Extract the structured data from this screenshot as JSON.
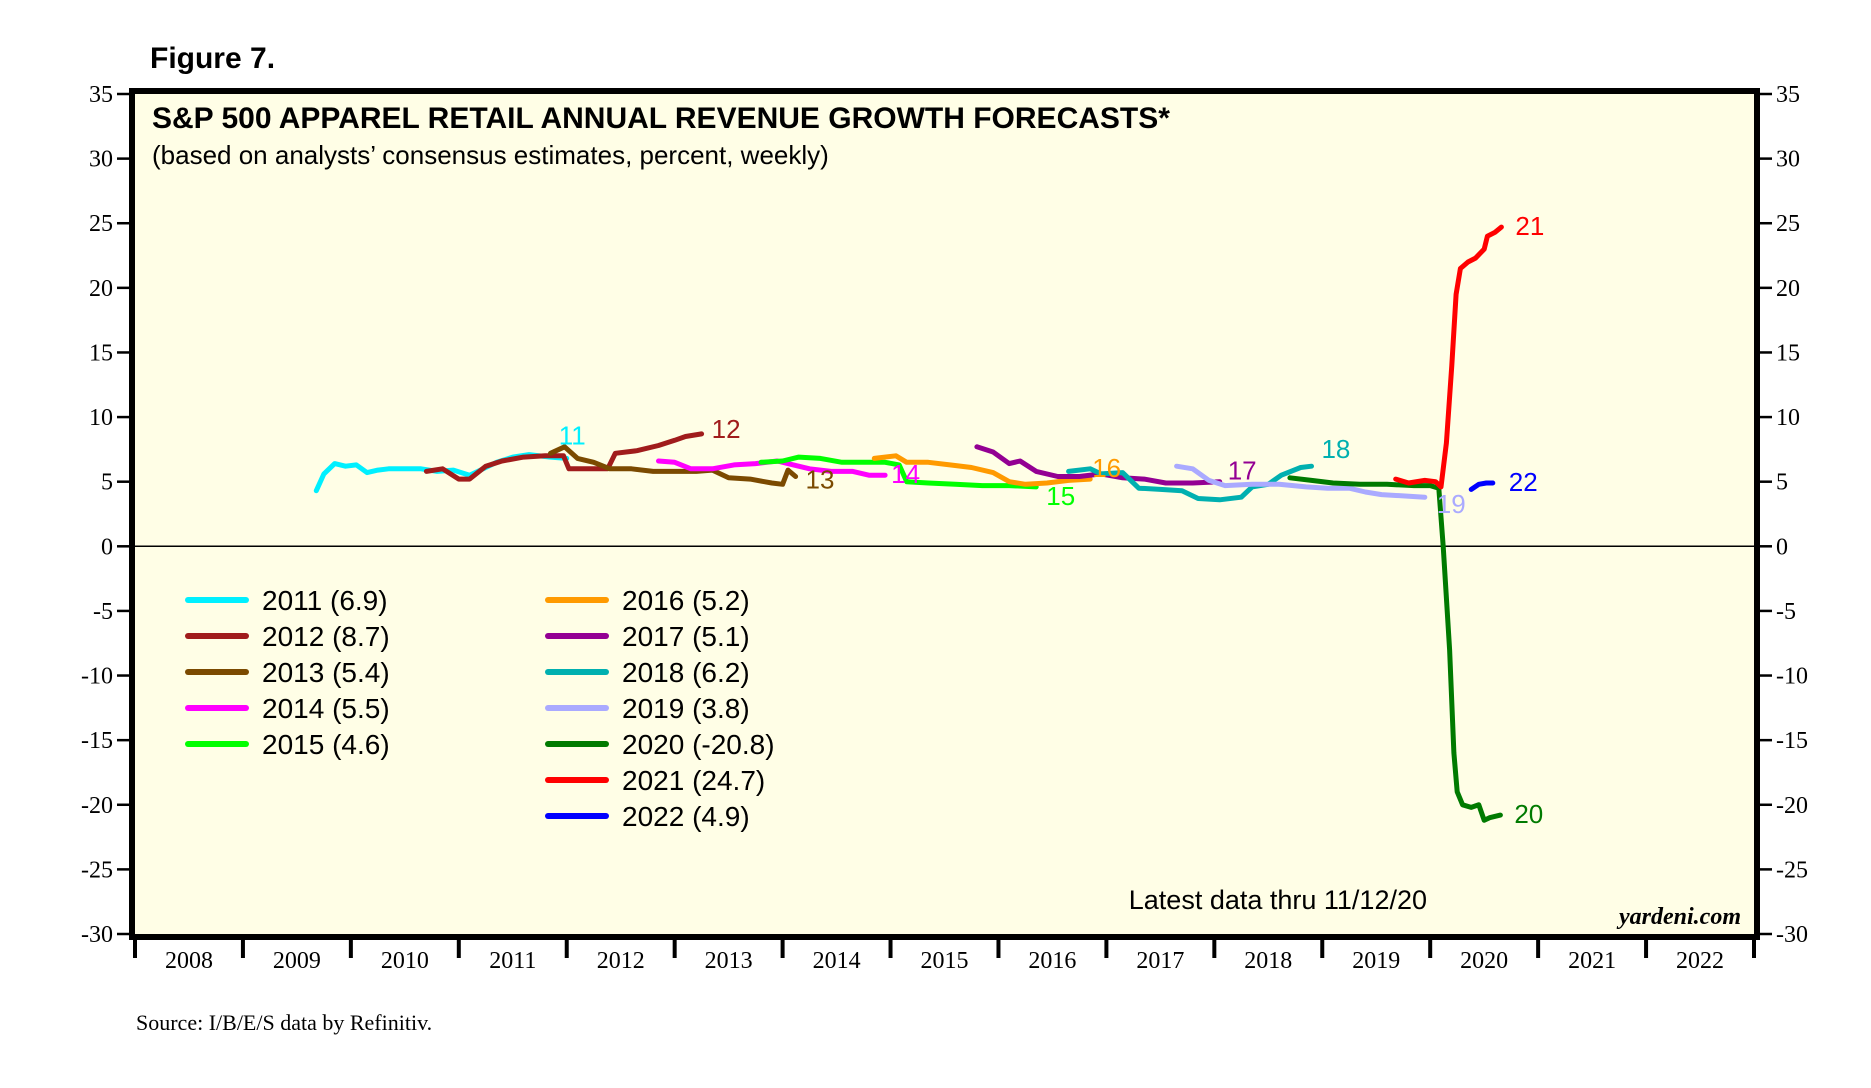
{
  "figure_label": "Figure 7.",
  "source": "Source: I/B/E/S data by Refinitiv.",
  "chart_data": {
    "type": "line",
    "title": "S&P 500 APPAREL RETAIL ANNUAL REVENUE GROWTH FORECASTS*",
    "subtitle": "(based on analysts’ consensus estimates, percent, weekly)",
    "xlabel": "",
    "ylabel": "",
    "xlim": [
      2008,
      2023
    ],
    "ylim": [
      -30,
      35
    ],
    "x_tick_labels": [
      "2008",
      "2009",
      "2010",
      "2011",
      "2012",
      "2013",
      "2014",
      "2015",
      "2016",
      "2017",
      "2018",
      "2019",
      "2020",
      "2021",
      "2022"
    ],
    "y_ticks": [
      35,
      30,
      25,
      20,
      15,
      10,
      5,
      0,
      -5,
      -10,
      -15,
      -20,
      -25,
      -30
    ],
    "y_tick_labels": [
      "35",
      "30",
      "25",
      "20",
      "15",
      "10",
      "5",
      "0",
      "-5",
      "-10",
      "-15",
      "-20",
      "-25",
      "-30"
    ],
    "zero_line": true,
    "grid": false,
    "legend_position": "lower-left",
    "background": "#fffee6",
    "annotation": "Latest data thru  11/12/20",
    "brand": "yardeni.com",
    "series": [
      {
        "name": "2011",
        "legend": "2011 (6.9)",
        "final": 6.9,
        "end_label": "11",
        "color": "#00f0ff",
        "points": [
          [
            2009.68,
            4.3
          ],
          [
            2009.75,
            5.6
          ],
          [
            2009.85,
            6.4
          ],
          [
            2009.95,
            6.2
          ],
          [
            2010.05,
            6.3
          ],
          [
            2010.15,
            5.7
          ],
          [
            2010.25,
            5.9
          ],
          [
            2010.35,
            6.0
          ],
          [
            2010.5,
            6.0
          ],
          [
            2010.65,
            6.0
          ],
          [
            2010.8,
            5.8
          ],
          [
            2010.95,
            5.9
          ],
          [
            2011.1,
            5.5
          ],
          [
            2011.2,
            5.9
          ],
          [
            2011.35,
            6.5
          ],
          [
            2011.5,
            6.9
          ],
          [
            2011.65,
            7.1
          ],
          [
            2011.85,
            6.9
          ],
          [
            2012.0,
            6.8
          ]
        ]
      },
      {
        "name": "2012",
        "legend": "2012 (8.7)",
        "final": 8.7,
        "end_label": "12",
        "color": "#a01c1c",
        "points": [
          [
            2010.7,
            5.8
          ],
          [
            2010.85,
            6.0
          ],
          [
            2011.0,
            5.2
          ],
          [
            2011.1,
            5.2
          ],
          [
            2011.25,
            6.2
          ],
          [
            2011.4,
            6.6
          ],
          [
            2011.6,
            6.9
          ],
          [
            2011.8,
            7.0
          ],
          [
            2011.97,
            7.0
          ],
          [
            2012.02,
            6.0
          ],
          [
            2012.2,
            6.0
          ],
          [
            2012.38,
            6.0
          ],
          [
            2012.45,
            7.2
          ],
          [
            2012.65,
            7.4
          ],
          [
            2012.85,
            7.8
          ],
          [
            2013.0,
            8.2
          ],
          [
            2013.1,
            8.5
          ],
          [
            2013.25,
            8.7
          ]
        ]
      },
      {
        "name": "2013",
        "legend": "2013 (5.4)",
        "final": 5.4,
        "end_label": "13",
        "color": "#7b4a00",
        "points": [
          [
            2011.85,
            7.2
          ],
          [
            2011.98,
            7.7
          ],
          [
            2012.1,
            6.8
          ],
          [
            2012.25,
            6.5
          ],
          [
            2012.4,
            6.0
          ],
          [
            2012.6,
            6.0
          ],
          [
            2012.8,
            5.8
          ],
          [
            2013.0,
            5.8
          ],
          [
            2013.2,
            5.8
          ],
          [
            2013.35,
            5.9
          ],
          [
            2013.5,
            5.3
          ],
          [
            2013.7,
            5.2
          ],
          [
            2013.9,
            4.9
          ],
          [
            2014.0,
            4.8
          ],
          [
            2014.05,
            5.9
          ],
          [
            2014.12,
            5.4
          ]
        ]
      },
      {
        "name": "2014",
        "legend": "2014 (5.5)",
        "final": 5.5,
        "end_label": "14",
        "color": "#ff00ff",
        "points": [
          [
            2012.85,
            6.6
          ],
          [
            2013.0,
            6.5
          ],
          [
            2013.15,
            6.0
          ],
          [
            2013.35,
            6.0
          ],
          [
            2013.55,
            6.3
          ],
          [
            2013.75,
            6.4
          ],
          [
            2013.95,
            6.6
          ],
          [
            2014.1,
            6.3
          ],
          [
            2014.25,
            6.0
          ],
          [
            2014.45,
            5.8
          ],
          [
            2014.65,
            5.8
          ],
          [
            2014.8,
            5.5
          ],
          [
            2014.95,
            5.5
          ]
        ]
      },
      {
        "name": "2015",
        "legend": "2015 (4.6)",
        "final": 4.6,
        "end_label": "15",
        "color": "#00ff00",
        "points": [
          [
            2013.8,
            6.5
          ],
          [
            2014.0,
            6.6
          ],
          [
            2014.15,
            6.9
          ],
          [
            2014.35,
            6.8
          ],
          [
            2014.55,
            6.5
          ],
          [
            2014.75,
            6.5
          ],
          [
            2014.95,
            6.5
          ],
          [
            2015.08,
            6.3
          ],
          [
            2015.15,
            5.0
          ],
          [
            2015.35,
            4.9
          ],
          [
            2015.6,
            4.8
          ],
          [
            2015.85,
            4.7
          ],
          [
            2016.1,
            4.7
          ],
          [
            2016.35,
            4.6
          ]
        ]
      },
      {
        "name": "2016",
        "legend": "2016 (5.2)",
        "final": 5.2,
        "end_label": "16",
        "color": "#ff9a00",
        "points": [
          [
            2014.85,
            6.8
          ],
          [
            2015.05,
            7.0
          ],
          [
            2015.15,
            6.5
          ],
          [
            2015.35,
            6.5
          ],
          [
            2015.55,
            6.3
          ],
          [
            2015.75,
            6.1
          ],
          [
            2015.95,
            5.7
          ],
          [
            2016.1,
            5.0
          ],
          [
            2016.25,
            4.8
          ],
          [
            2016.45,
            4.9
          ],
          [
            2016.65,
            5.1
          ],
          [
            2016.85,
            5.2
          ]
        ]
      },
      {
        "name": "2017",
        "legend": "2017 (5.1)",
        "final": 5.1,
        "end_label": "17",
        "color": "#930093",
        "points": [
          [
            2015.8,
            7.7
          ],
          [
            2015.95,
            7.3
          ],
          [
            2016.1,
            6.4
          ],
          [
            2016.2,
            6.6
          ],
          [
            2016.35,
            5.8
          ],
          [
            2016.55,
            5.4
          ],
          [
            2016.75,
            5.4
          ],
          [
            2016.95,
            5.6
          ],
          [
            2017.15,
            5.3
          ],
          [
            2017.35,
            5.2
          ],
          [
            2017.55,
            4.9
          ],
          [
            2017.8,
            4.9
          ],
          [
            2018.05,
            5.0
          ]
        ]
      },
      {
        "name": "2018",
        "legend": "2018 (6.2)",
        "final": 6.2,
        "end_label": "18",
        "color": "#00b0b0",
        "points": [
          [
            2016.65,
            5.8
          ],
          [
            2016.85,
            6.0
          ],
          [
            2016.95,
            5.6
          ],
          [
            2017.15,
            5.7
          ],
          [
            2017.3,
            4.5
          ],
          [
            2017.5,
            4.4
          ],
          [
            2017.7,
            4.3
          ],
          [
            2017.85,
            3.7
          ],
          [
            2018.05,
            3.6
          ],
          [
            2018.25,
            3.8
          ],
          [
            2018.35,
            4.6
          ],
          [
            2018.5,
            4.8
          ],
          [
            2018.62,
            5.5
          ],
          [
            2018.8,
            6.1
          ],
          [
            2018.9,
            6.2
          ]
        ]
      },
      {
        "name": "2019",
        "legend": "2019 (3.8)",
        "final": 3.8,
        "end_label": "19",
        "color": "#aaaaff",
        "points": [
          [
            2017.65,
            6.2
          ],
          [
            2017.8,
            6.0
          ],
          [
            2017.95,
            5.1
          ],
          [
            2018.1,
            4.7
          ],
          [
            2018.35,
            4.8
          ],
          [
            2018.6,
            4.8
          ],
          [
            2018.85,
            4.6
          ],
          [
            2019.05,
            4.5
          ],
          [
            2019.25,
            4.5
          ],
          [
            2019.4,
            4.2
          ],
          [
            2019.55,
            4.0
          ],
          [
            2019.75,
            3.9
          ],
          [
            2019.95,
            3.8
          ]
        ]
      },
      {
        "name": "2020",
        "legend": "2020 (-20.8)",
        "final": -20.8,
        "end_label": "20",
        "color": "#007a00",
        "points": [
          [
            2018.7,
            5.3
          ],
          [
            2018.9,
            5.1
          ],
          [
            2019.1,
            4.9
          ],
          [
            2019.35,
            4.8
          ],
          [
            2019.6,
            4.8
          ],
          [
            2019.85,
            4.7
          ],
          [
            2020.0,
            4.7
          ],
          [
            2020.08,
            4.5
          ],
          [
            2020.12,
            0.0
          ],
          [
            2020.18,
            -8.0
          ],
          [
            2020.22,
            -16.0
          ],
          [
            2020.25,
            -19.0
          ],
          [
            2020.3,
            -20.0
          ],
          [
            2020.38,
            -20.2
          ],
          [
            2020.45,
            -20.0
          ],
          [
            2020.5,
            -21.2
          ],
          [
            2020.55,
            -21.0
          ],
          [
            2020.65,
            -20.8
          ]
        ]
      },
      {
        "name": "2021",
        "legend": "2021 (24.7)",
        "final": 24.7,
        "end_label": "21",
        "color": "#ff0000",
        "points": [
          [
            2019.68,
            5.2
          ],
          [
            2019.8,
            4.9
          ],
          [
            2019.95,
            5.1
          ],
          [
            2020.05,
            5.0
          ],
          [
            2020.1,
            4.6
          ],
          [
            2020.15,
            8.0
          ],
          [
            2020.2,
            14.0
          ],
          [
            2020.24,
            19.5
          ],
          [
            2020.28,
            21.5
          ],
          [
            2020.35,
            22.0
          ],
          [
            2020.42,
            22.3
          ],
          [
            2020.5,
            23.0
          ],
          [
            2020.53,
            24.0
          ],
          [
            2020.6,
            24.3
          ],
          [
            2020.66,
            24.7
          ]
        ]
      },
      {
        "name": "2022",
        "legend": "2022 (4.9)",
        "final": 4.9,
        "end_label": "22",
        "color": "#0000ff",
        "points": [
          [
            2020.38,
            4.4
          ],
          [
            2020.45,
            4.8
          ],
          [
            2020.52,
            4.9
          ],
          [
            2020.58,
            4.9
          ]
        ]
      }
    ]
  }
}
